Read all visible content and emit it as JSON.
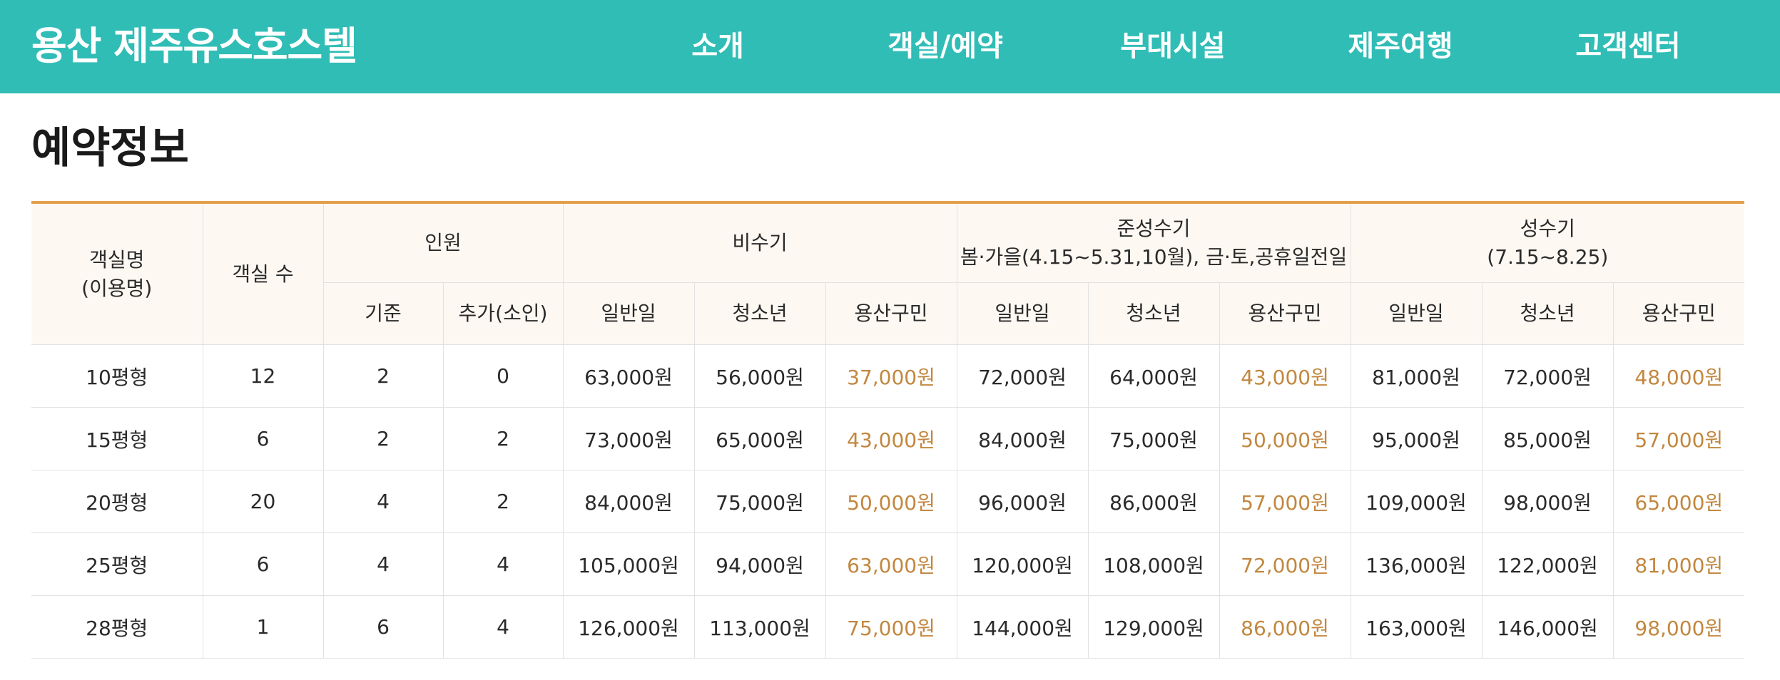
{
  "header": {
    "logo": "용산 제주유스호스텔",
    "nav": [
      "소개",
      "객실/예약",
      "부대시설",
      "제주여행",
      "고객센터"
    ],
    "bg_color": "#30bdb6"
  },
  "page_title": "예약정보",
  "table": {
    "accent_color": "#e3a04c",
    "local_price_color": "#c2873f",
    "head": {
      "room_line1": "객실명",
      "room_line2": "(이용명)",
      "count": "객실 수",
      "people": "인원",
      "off_season": "비수기",
      "shoulder_line1": "준성수기",
      "shoulder_line2": "봄·가을(4.15~5.31,10월), 금·토,공휴일전일",
      "peak_line1": "성수기",
      "peak_line2": "(7.15~8.25)",
      "base": "기준",
      "extra": "추가(소인)",
      "general": "일반일",
      "youth": "청소년",
      "local": "용산구민"
    },
    "rows": [
      {
        "name": "10평형",
        "count": "12",
        "base": "2",
        "extra": "0",
        "off": [
          "63,000원",
          "56,000원",
          "37,000원"
        ],
        "shoulder": [
          "72,000원",
          "64,000원",
          "43,000원"
        ],
        "peak": [
          "81,000원",
          "72,000원",
          "48,000원"
        ]
      },
      {
        "name": "15평형",
        "count": "6",
        "base": "2",
        "extra": "2",
        "off": [
          "73,000원",
          "65,000원",
          "43,000원"
        ],
        "shoulder": [
          "84,000원",
          "75,000원",
          "50,000원"
        ],
        "peak": [
          "95,000원",
          "85,000원",
          "57,000원"
        ]
      },
      {
        "name": "20평형",
        "count": "20",
        "base": "4",
        "extra": "2",
        "off": [
          "84,000원",
          "75,000원",
          "50,000원"
        ],
        "shoulder": [
          "96,000원",
          "86,000원",
          "57,000원"
        ],
        "peak": [
          "109,000원",
          "98,000원",
          "65,000원"
        ]
      },
      {
        "name": "25평형",
        "count": "6",
        "base": "4",
        "extra": "4",
        "off": [
          "105,000원",
          "94,000원",
          "63,000원"
        ],
        "shoulder": [
          "120,000원",
          "108,000원",
          "72,000원"
        ],
        "peak": [
          "136,000원",
          "122,000원",
          "81,000원"
        ]
      },
      {
        "name": "28평형",
        "count": "1",
        "base": "6",
        "extra": "4",
        "off": [
          "126,000원",
          "113,000원",
          "75,000원"
        ],
        "shoulder": [
          "144,000원",
          "129,000원",
          "86,000원"
        ],
        "peak": [
          "163,000원",
          "146,000원",
          "98,000원"
        ]
      }
    ]
  }
}
